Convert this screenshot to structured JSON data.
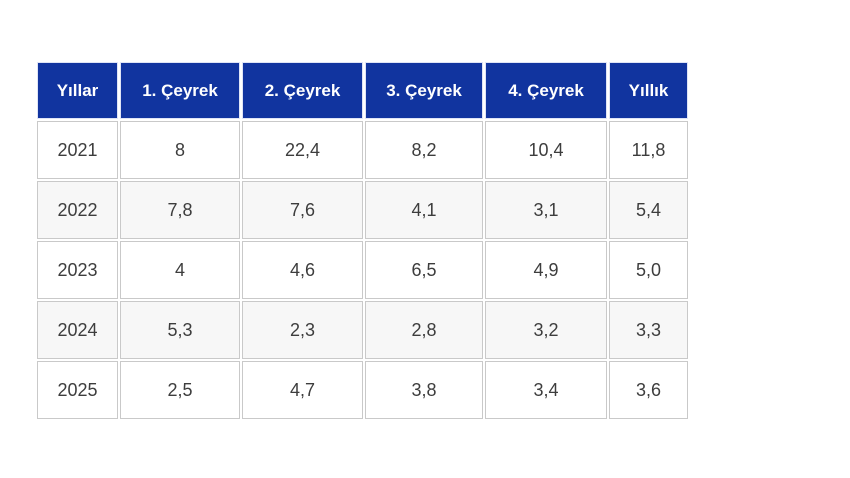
{
  "chart_data": {
    "type": "table",
    "columns": [
      "Yıllar",
      "1. Çeyrek",
      "2. Çeyrek",
      "3. Çeyrek",
      "4. Çeyrek",
      "Yıllık"
    ],
    "rows": [
      [
        "2021",
        "8",
        "22,4",
        "8,2",
        "10,4",
        "11,8"
      ],
      [
        "2022",
        "7,8",
        "7,6",
        "4,1",
        "3,1",
        "5,4"
      ],
      [
        "2023",
        "4",
        "4,6",
        "6,5",
        "4,9",
        "5,0"
      ],
      [
        "2024",
        "5,3",
        "2,3",
        "2,8",
        "3,2",
        "3,3"
      ],
      [
        "2025",
        "2,5",
        "4,7",
        "3,8",
        "3,4",
        "3,6"
      ]
    ],
    "layout": {
      "legend": "none",
      "grid": "cell-borders",
      "header_position": "top"
    }
  },
  "colors": {
    "header_background": "#11349f",
    "header_text": "#ffffff",
    "row_background": "#ffffff",
    "row_alt_background": "#f7f7f7",
    "cell_border": "#c9c9c9",
    "cell_text": "#3d3d3d",
    "page_background": "#ffffff"
  }
}
